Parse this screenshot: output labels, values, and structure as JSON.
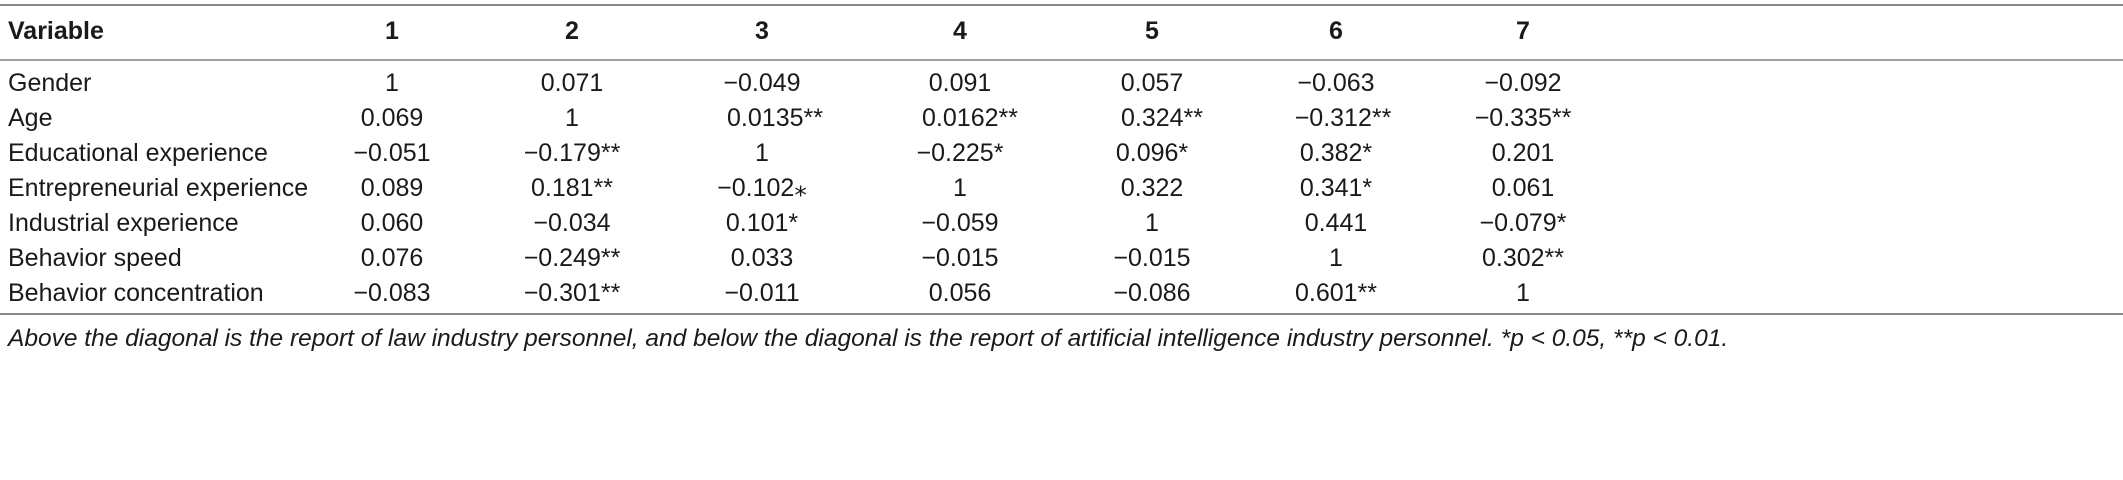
{
  "table": {
    "headers": [
      "Variable",
      "1",
      "2",
      "3",
      "4",
      "5",
      "6",
      "7"
    ],
    "rows": [
      {
        "label": "Gender",
        "values": [
          "1",
          "0.071",
          "−0.049",
          "0.091",
          "0.057",
          "−0.063",
          "−0.092"
        ]
      },
      {
        "label": "Age",
        "values": [
          "0.069",
          "1",
          "0.0135**",
          "0.0162**",
          "0.324**",
          "−0.312**",
          "−0.335**"
        ]
      },
      {
        "label": "Educational experience",
        "values": [
          "−0.051",
          "−0.179**",
          "1",
          "−0.225*",
          "0.096*",
          "0.382*",
          "0.201"
        ]
      },
      {
        "label": "Entrepreneurial experience",
        "values": [
          "0.089",
          "0.181**",
          "−0.102⁎",
          "1",
          "0.322",
          "0.341*",
          "0.061"
        ]
      },
      {
        "label": "Industrial experience",
        "values": [
          "0.060",
          "−0.034",
          "0.101*",
          "−0.059",
          "1",
          "0.441",
          "−0.079*"
        ]
      },
      {
        "label": "Behavior speed",
        "values": [
          "0.076",
          "−0.249**",
          "0.033",
          "−0.015",
          "−0.015",
          "1",
          "0.302**"
        ]
      },
      {
        "label": "Behavior concentration",
        "values": [
          "−0.083",
          "−0.301**",
          "−0.011",
          "0.056",
          "−0.086",
          "0.601**",
          "1"
        ]
      }
    ]
  },
  "footnote": "Above the diagonal is the report of law industry personnel, and below the diagonal is the report of artificial intelligence industry personnel. *p < 0.05, **p < 0.01."
}
